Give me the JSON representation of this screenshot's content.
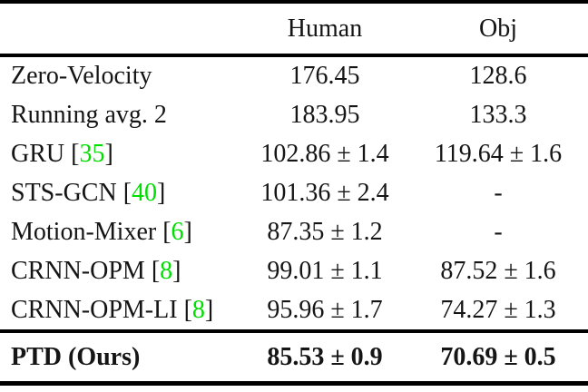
{
  "table": {
    "title_hint": "method-comparison-results-table",
    "header": {
      "method": "",
      "human": "Human",
      "obj": "Obj"
    },
    "rows": [
      {
        "label": "Zero-Velocity",
        "human": "176.45",
        "obj": "128.6"
      },
      {
        "label": "Running avg. 2",
        "human": "183.95",
        "obj": "133.3"
      },
      {
        "label": "GRU",
        "bracket_open": " [",
        "cite": "35",
        "bracket_close": "]",
        "human": "102.86 ± 1.4",
        "obj": "119.64 ± 1.6"
      },
      {
        "label": "STS-GCN",
        "bracket_open": " [",
        "cite": "40",
        "bracket_close": "]",
        "human": "101.36 ± 2.4",
        "obj": "-"
      },
      {
        "label": "Motion-Mixer",
        "bracket_open": " [",
        "cite": "6",
        "bracket_close": "]",
        "human": "87.35 ± 1.2",
        "obj": "-"
      },
      {
        "label": "CRNN-OPM",
        "bracket_open": " [",
        "cite": "8",
        "bracket_close": "]",
        "human": "99.01 ± 1.1",
        "obj": "87.52 ± 1.6"
      },
      {
        "label": "CRNN-OPM-LI",
        "bracket_open": " [",
        "cite": "8",
        "bracket_close": "]",
        "human": "95.96 ± 1.7",
        "obj": "74.27 ± 1.3"
      }
    ],
    "footer": {
      "label": "PTD (Ours)",
      "human": "85.53 ± 0.9",
      "obj": "70.69 ± 0.5"
    },
    "colors": {
      "citation_green": "#00dd00",
      "text": "#151515",
      "rule": "#000000",
      "background": "#ffffff"
    }
  }
}
